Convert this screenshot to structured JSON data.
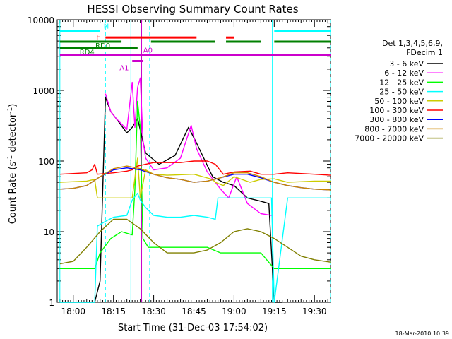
{
  "chart_data": {
    "type": "line",
    "title": "HESSI Observing Summary Count Rates",
    "xlabel": "Start Time (31-Dec-03 17:54:02)",
    "ylabel": "Count Rate (s⁻¹ detector⁻¹)",
    "ylabel_parts": {
      "main": "Count Rate (s",
      "sup": "-1",
      "mid": " detector",
      "sup2": "-1",
      "end": ")"
    },
    "yscale": "log",
    "xlim": [
      -6,
      96
    ],
    "ylim": [
      1,
      10000
    ],
    "x_unit": "minutes after 18:00 UT (31-Dec-03)",
    "x_ticks": [
      {
        "value": 0,
        "label": "18:00"
      },
      {
        "value": 15,
        "label": "18:15"
      },
      {
        "value": 30,
        "label": "18:30"
      },
      {
        "value": 45,
        "label": "18:45"
      },
      {
        "value": 60,
        "label": "19:00"
      },
      {
        "value": 75,
        "label": "19:15"
      },
      {
        "value": 90,
        "label": "19:30"
      }
    ],
    "y_ticks": [
      {
        "value": 1,
        "label": "1"
      },
      {
        "value": 10,
        "label": "10"
      },
      {
        "value": 100,
        "label": "100"
      },
      {
        "value": 1000,
        "label": "1000"
      },
      {
        "value": 10000,
        "label": "10000"
      }
    ],
    "legend_header": [
      "Det 1,3,4,5,6,9,",
      "FDecim 1"
    ],
    "legend_position": "right",
    "series": [
      {
        "name": "3 - 6 keV",
        "color": "#000000",
        "x": [
          -5,
          5,
          8,
          10,
          12,
          14,
          16,
          20,
          22,
          24,
          27,
          32,
          38,
          43,
          46,
          52,
          56,
          60,
          65,
          70,
          73,
          75,
          76,
          78
        ],
        "values": [
          1,
          1,
          1,
          2,
          800,
          500,
          400,
          250,
          300,
          400,
          130,
          90,
          120,
          300,
          180,
          60,
          50,
          45,
          30,
          27,
          25,
          1,
          1,
          1
        ]
      },
      {
        "name": "6 - 12 keV",
        "color": "#ff00ff",
        "x": [
          12,
          14,
          16,
          20,
          22,
          23,
          24,
          25,
          26,
          27,
          30,
          35,
          40,
          44,
          46,
          50,
          55,
          58,
          61,
          65,
          70,
          74
        ],
        "values": [
          900,
          500,
          400,
          280,
          1300,
          300,
          1100,
          1500,
          200,
          110,
          75,
          80,
          110,
          320,
          150,
          70,
          40,
          30,
          60,
          25,
          18,
          17
        ]
      },
      {
        "name": "12 - 25 keV",
        "color": "#00ff00",
        "x": [
          -5,
          5,
          8,
          10,
          14,
          18,
          22,
          23,
          24,
          25,
          26,
          28,
          32,
          40,
          45,
          50,
          55,
          60,
          65,
          70,
          75,
          80,
          85,
          96
        ],
        "values": [
          3,
          3,
          3,
          5,
          8,
          10,
          9,
          40,
          700,
          300,
          8,
          6,
          6,
          6,
          6,
          6,
          5,
          5,
          5,
          5,
          3,
          3,
          3,
          3
        ]
      },
      {
        "name": "25 - 50 keV",
        "color": "#00ffff",
        "x": [
          -5,
          5,
          8,
          9,
          12,
          15,
          20,
          22,
          24,
          25,
          27,
          30,
          35,
          40,
          45,
          50,
          53,
          54,
          60,
          65,
          72,
          74,
          75,
          80,
          85,
          96
        ],
        "values": [
          1,
          1,
          1,
          12,
          14,
          16,
          17,
          28,
          35,
          28,
          22,
          17,
          16,
          16,
          17,
          16,
          15,
          30,
          30,
          30,
          30,
          30,
          1,
          30,
          30,
          30
        ]
      },
      {
        "name": "50 - 100 keV",
        "color": "#cccc00",
        "x": [
          -5,
          5,
          8,
          9,
          15,
          20,
          22,
          24,
          25,
          27,
          30,
          35,
          45,
          52,
          53,
          56,
          60,
          66,
          70,
          75,
          80,
          90,
          96
        ],
        "values": [
          50,
          52,
          55,
          30,
          30,
          30,
          30,
          110,
          30,
          75,
          65,
          63,
          65,
          55,
          50,
          45,
          60,
          50,
          55,
          56,
          50,
          52,
          52
        ]
      },
      {
        "name": "100 - 300 keV",
        "color": "#ff0000",
        "x": [
          -5,
          5,
          7,
          8,
          9,
          15,
          20,
          22,
          24,
          27,
          30,
          40,
          45,
          50,
          53,
          56,
          60,
          66,
          70,
          75,
          80,
          90,
          96
        ],
        "values": [
          65,
          68,
          75,
          90,
          65,
          68,
          72,
          75,
          85,
          90,
          95,
          95,
          100,
          100,
          90,
          65,
          70,
          72,
          65,
          65,
          68,
          65,
          63
        ]
      },
      {
        "name": "300 - 800 keV",
        "color": "#0000ff",
        "x": [
          -5,
          0,
          5,
          10,
          15,
          20,
          25,
          30,
          35,
          40,
          45,
          50,
          55,
          60,
          65,
          70,
          75,
          80,
          85,
          90,
          96
        ],
        "values": [
          40,
          41,
          45,
          60,
          75,
          80,
          75,
          65,
          58,
          55,
          50,
          52,
          58,
          65,
          65,
          58,
          50,
          45,
          42,
          40,
          39
        ]
      },
      {
        "name": "800 - 7000 keV",
        "color": "#cc8800",
        "x": [
          -5,
          0,
          5,
          10,
          15,
          20,
          25,
          30,
          35,
          40,
          45,
          50,
          55,
          60,
          65,
          70,
          75,
          80,
          85,
          90,
          96
        ],
        "values": [
          40,
          41,
          45,
          60,
          78,
          85,
          78,
          65,
          58,
          55,
          50,
          52,
          58,
          68,
          68,
          60,
          50,
          45,
          42,
          40,
          39
        ]
      },
      {
        "name": "7000 - 20000 keV",
        "color": "#808000",
        "x": [
          -5,
          0,
          5,
          10,
          15,
          20,
          25,
          30,
          35,
          40,
          45,
          50,
          55,
          60,
          65,
          70,
          75,
          80,
          85,
          90,
          96
        ],
        "values": [
          3.5,
          3.8,
          6,
          10,
          15,
          15,
          11,
          7,
          5,
          5,
          5,
          5.5,
          7,
          10,
          11,
          10,
          8,
          6,
          4.5,
          4,
          3.7
        ]
      }
    ],
    "state_bars": [
      {
        "name": "N",
        "color": "#00ffff",
        "y": 7000,
        "segments": [
          [
            -5,
            10
          ],
          [
            75,
            96
          ]
        ]
      },
      {
        "name": "F",
        "color": "#ff0000",
        "y": 5600,
        "segments": [
          [
            12,
            46
          ],
          [
            57,
            60
          ]
        ]
      },
      {
        "name": "RD0",
        "color": "#008000",
        "y": 4900,
        "segments": [
          [
            -5,
            18
          ],
          [
            29,
            53
          ],
          [
            57,
            70
          ],
          [
            75,
            96
          ]
        ]
      },
      {
        "name": "RD4",
        "color": "#008000",
        "y": 4000,
        "segments": [
          [
            -5,
            24
          ]
        ]
      },
      {
        "name": "A0",
        "color": "#cc00cc",
        "y": 3200,
        "segments": [
          [
            -5,
            96
          ]
        ]
      },
      {
        "name": "A1",
        "color": "#cc00cc",
        "y": 2600,
        "segments": [
          [
            22,
            26
          ]
        ]
      }
    ],
    "vertical_lines": [
      {
        "color": "#00ffff",
        "style": "solid",
        "x": [
          -5,
          21.5,
          74.3
        ]
      },
      {
        "color": "#00ffff",
        "style": "dashed",
        "x": [
          12,
          28.5,
          96
        ]
      },
      {
        "color": "#cc00cc",
        "style": "solid",
        "x": [
          25.5
        ]
      }
    ]
  },
  "footer_timestamp": "18-Mar-2010 10:39"
}
